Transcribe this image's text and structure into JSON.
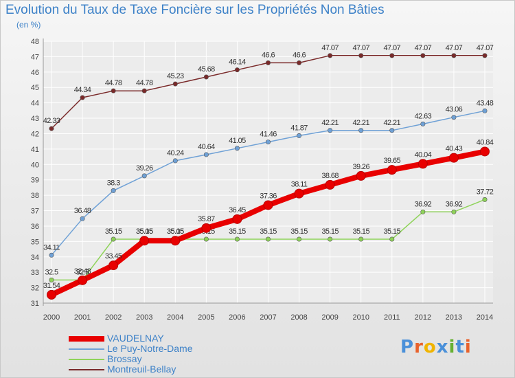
{
  "header": {
    "title": "Evolution du Taux de Taxe Foncière sur les Propriétés Non Bâties",
    "subtitle": "(en %)"
  },
  "logo": {
    "text": "Proxiti",
    "letter_colors": [
      "#4a90d9",
      "#e8622c",
      "#f0b400",
      "#4a90d9",
      "#66b032",
      "#4a90d9",
      "#e8622c"
    ]
  },
  "chart_data": {
    "type": "line",
    "x": [
      2000,
      2001,
      2002,
      2003,
      2004,
      2005,
      2006,
      2007,
      2008,
      2009,
      2010,
      2011,
      2012,
      2013,
      2014
    ],
    "ylim": [
      31,
      48
    ],
    "yticks": [
      31,
      32,
      33,
      34,
      35,
      36,
      37,
      38,
      39,
      40,
      41,
      42,
      43,
      44,
      45,
      46,
      47,
      48
    ],
    "title": "Evolution du Taux de Taxe Foncière sur les Propriétés Non Bâties",
    "ylabel": "(en %)",
    "grid": true,
    "legend_position": "bottom-left",
    "series": [
      {
        "name": "VAUDELNAY",
        "color": "#e80000",
        "emphasis": true,
        "values": [
          31.54,
          32.48,
          33.45,
          35.05,
          35.05,
          35.87,
          36.45,
          37.36,
          38.11,
          38.68,
          39.26,
          39.65,
          40.04,
          40.43,
          40.84
        ],
        "labels": [
          "31.54",
          "32.48",
          "33.45",
          "35.05",
          "35.05",
          "35.87",
          "36.45",
          "37.36",
          "38.11",
          "38.68",
          "39.26",
          "39.65",
          "40.04",
          "40.43",
          "40.84"
        ]
      },
      {
        "name": "Le Puy-Notre-Dame",
        "color": "#6fa1d6",
        "values": [
          34.11,
          36.48,
          38.3,
          39.26,
          40.24,
          40.64,
          41.05,
          41.46,
          41.87,
          42.21,
          42.21,
          42.21,
          42.63,
          43.06,
          43.48
        ],
        "labels": [
          "34.11",
          "36.48",
          "38.3",
          "39.26",
          "40.24",
          "40.64",
          "41.05",
          "41.46",
          "41.87",
          "42.21",
          "42.21",
          "42.21",
          "42.63",
          "43.06",
          "43.48"
        ]
      },
      {
        "name": "Brossay",
        "color": "#8fd35a",
        "values": [
          32.5,
          32.5,
          35.15,
          35.15,
          35.15,
          35.15,
          35.15,
          35.15,
          35.15,
          35.15,
          35.15,
          35.15,
          36.92,
          36.92,
          37.72
        ],
        "labels": [
          "32.5",
          "32.5",
          "35.15",
          "35.15",
          "35.15",
          "35.15",
          "35.15",
          "35.15",
          "35.15",
          "35.15",
          "35.15",
          "35.15",
          "36.92",
          "36.92",
          "37.72"
        ]
      },
      {
        "name": "Montreuil-Bellay",
        "color": "#7a2a2a",
        "values": [
          42.33,
          44.34,
          44.78,
          44.78,
          45.23,
          45.68,
          46.14,
          46.6,
          46.6,
          47.07,
          47.07,
          47.07,
          47.07,
          47.07,
          47.07
        ],
        "labels": [
          "42.33",
          "44.34",
          "44.78",
          "44.78",
          "45.23",
          "45.68",
          "46.14",
          "46.6",
          "46.6",
          "47.07",
          "47.07",
          "47.07",
          "47.07",
          "47.07",
          "47.07"
        ]
      }
    ]
  }
}
